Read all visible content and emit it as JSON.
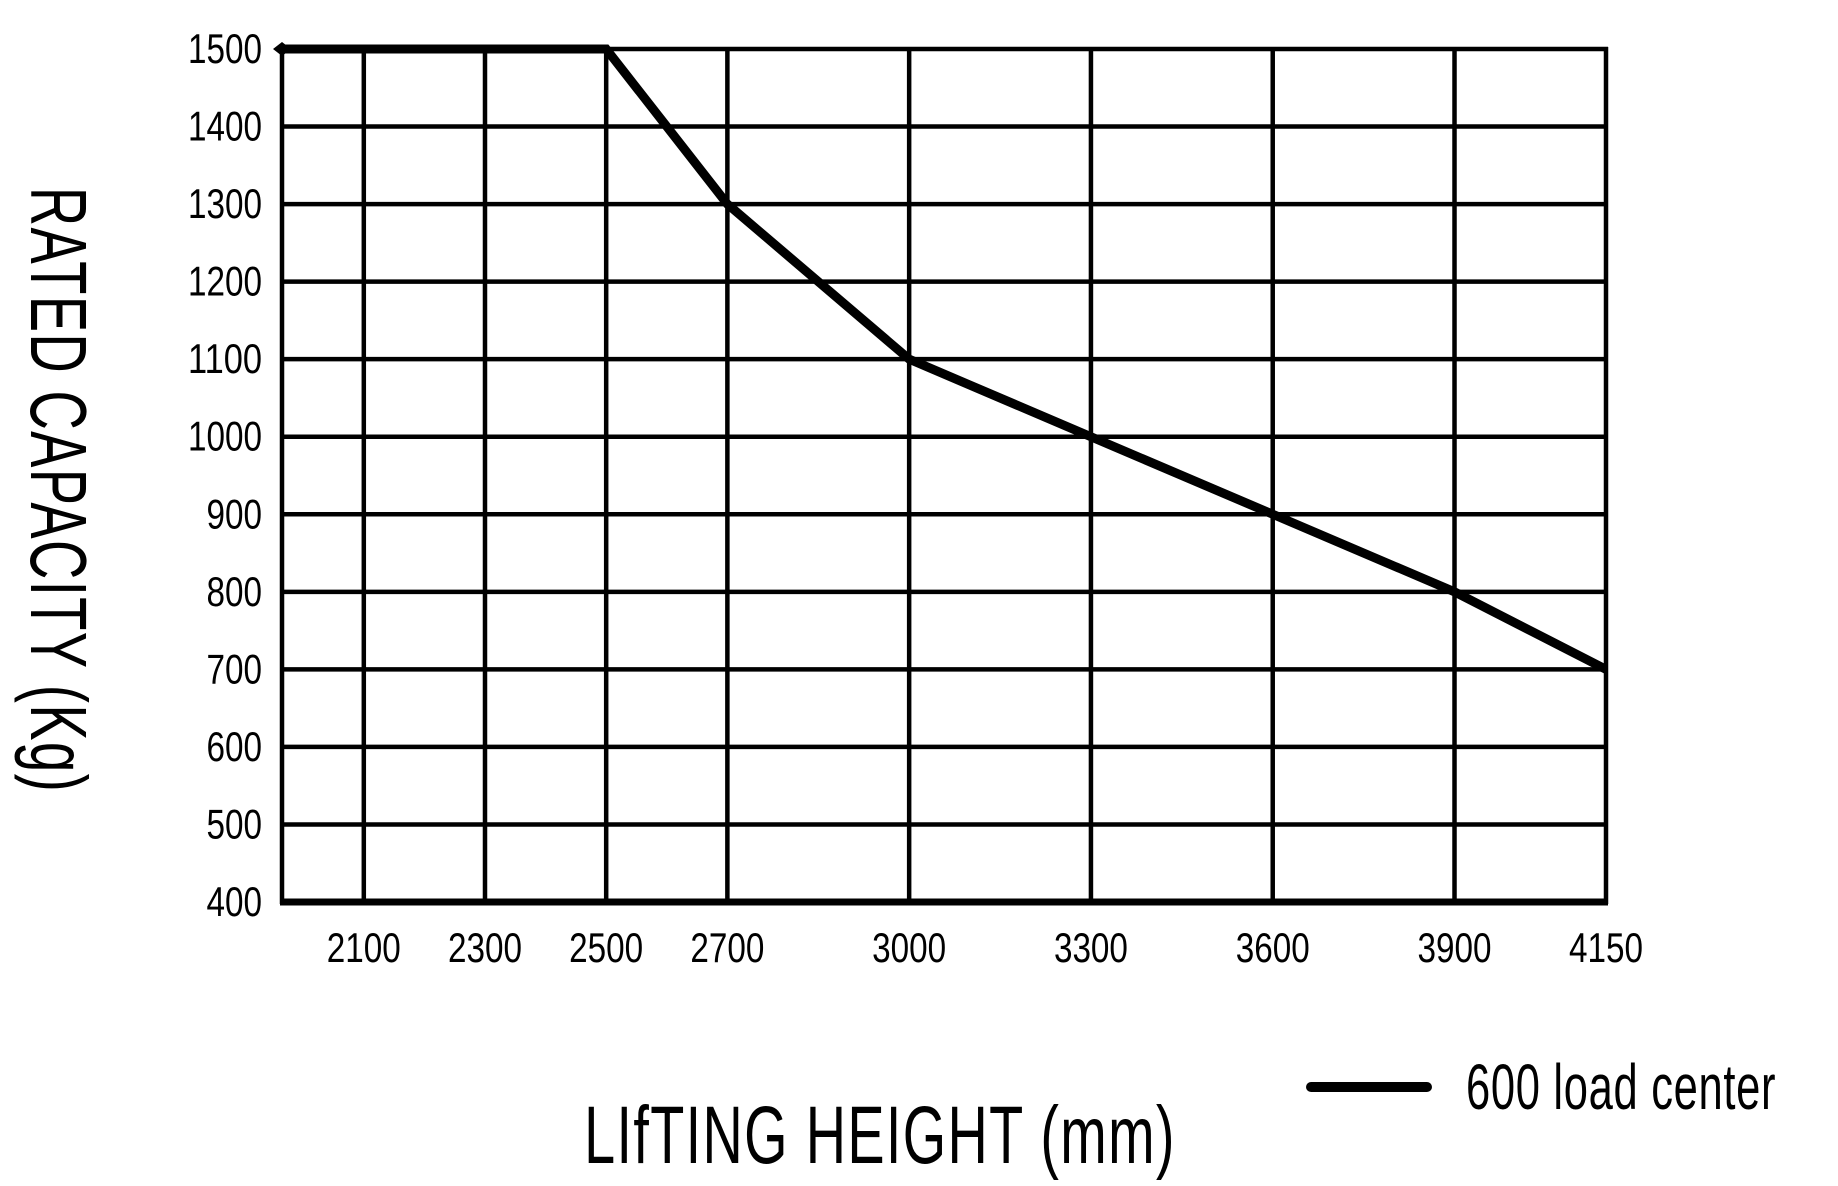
{
  "chart_data": {
    "type": "line",
    "title": "",
    "xlabel": "LIfTING HEIGHT (mm)",
    "ylabel": "RATED CAPACITY (Kg)",
    "x_ticks": [
      2100,
      2300,
      2500,
      2700,
      3000,
      3300,
      3600,
      3900,
      4150
    ],
    "y_ticks": [
      1500,
      1400,
      1300,
      1200,
      1100,
      1000,
      900,
      800,
      700,
      600,
      500,
      400
    ],
    "xlim": [
      1965,
      4150
    ],
    "ylim": [
      400,
      1500
    ],
    "grid": true,
    "legend_position": "bottom-right",
    "legend": [
      {
        "label": "600 load center",
        "swatch": "line"
      }
    ],
    "series": [
      {
        "name": "600 load center",
        "start_marker": "diamond",
        "points": [
          [
            1965,
            1500
          ],
          [
            2500,
            1500
          ],
          [
            2700,
            1300
          ],
          [
            3000,
            1100
          ],
          [
            3300,
            1000
          ],
          [
            3600,
            900
          ],
          [
            3900,
            800
          ],
          [
            4150,
            700
          ]
        ]
      }
    ],
    "colors": {
      "line": "#000000",
      "grid": "#000000",
      "text": "#000000",
      "background": "#ffffff"
    }
  }
}
